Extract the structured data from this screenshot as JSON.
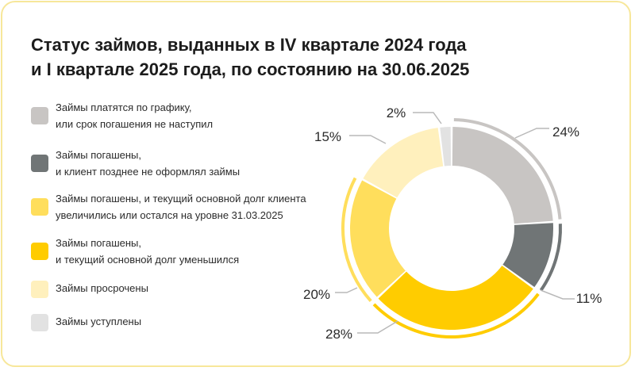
{
  "title": {
    "line1": "Статус займов, выданных в IV квартале 2024 года",
    "line2": "и I квартале 2025 года, по состоянию на 30.06.2025"
  },
  "legend": [
    {
      "line1": "Займы платятся по графику,",
      "line2": "или срок погашения не наступил",
      "color": "#c8c5c3"
    },
    {
      "line1": "Займы погашены,",
      "line2": "и клиент позднее не оформлял займы",
      "color": "#707576"
    },
    {
      "line1": "Займы погашены, и текущий основной долг клиента",
      "line2": "увеличились или остался на уровне 31.03.2025",
      "color": "#ffde5c"
    },
    {
      "line1": "Займы погашены,",
      "line2": "и текущий основной долг уменьшился",
      "color": "#ffcc00"
    },
    {
      "line1": "Займы просрочены",
      "line2": "",
      "color": "#fff0bd"
    },
    {
      "line1": "Займы уступлены",
      "line2": "",
      "color": "#e2e2e2"
    }
  ],
  "chart_data": {
    "type": "pie",
    "style": "donut",
    "title": "Статус займов, выданных в IV квартале 2024 года и I квартале 2025 года, по состоянию на 30.06.2025",
    "categories": [
      "Займы платятся по графику, или срок погашения не наступил",
      "Займы погашены, и клиент позднее не оформлял займы",
      "Займы погашены, и текущий основной долг уменьшился",
      "Займы погашены, и текущий основной долг клиента увеличились или остался на уровне 31.03.2025",
      "Займы просрочены",
      "Займы уступлены"
    ],
    "values": [
      24,
      11,
      28,
      20,
      15,
      2
    ],
    "labels": [
      "24%",
      "11%",
      "28%",
      "20%",
      "15%",
      "2%"
    ],
    "colors": [
      "#c8c5c3",
      "#707576",
      "#ffcc00",
      "#ffde5c",
      "#fff0bd",
      "#e2e2e2"
    ],
    "legend_position": "left"
  }
}
